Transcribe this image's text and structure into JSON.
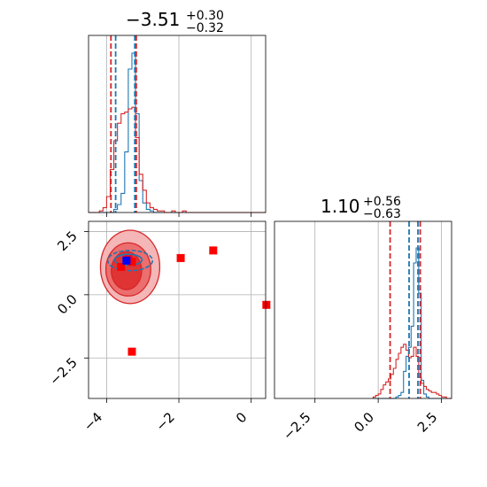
{
  "chart_data": [
    {
      "type": "histogram",
      "panel": "x-marginal",
      "title": {
        "value": "−3.51",
        "plus": "+0.30",
        "minus": "−0.32"
      },
      "xlim": [
        -4.5,
        0.4
      ],
      "xticks": [
        -4,
        -2,
        0
      ],
      "grid": true,
      "colors": {
        "blue": "#1f77b4",
        "red": "#d62728"
      },
      "bins": [
        -4.5,
        -4.4,
        -4.3,
        -4.2,
        -4.1,
        -4.0,
        -3.9,
        -3.8,
        -3.7,
        -3.6,
        -3.5,
        -3.4,
        -3.3,
        -3.2,
        -3.1,
        -3.0,
        -2.9,
        -2.8,
        -2.7,
        -2.6,
        -2.5,
        -2.4,
        -2.3,
        -2.2,
        -2.1,
        -2.0,
        -1.9,
        -1.8,
        -1.7,
        -1.6,
        -1.5,
        -1.4,
        -1.3,
        -1.2,
        -1.1,
        -1.0,
        -0.9,
        -0.8,
        -0.7,
        -0.6,
        -0.5,
        -0.4,
        -0.3,
        -0.2,
        -0.1,
        0.0,
        0.1,
        0.2,
        0.3,
        0.4
      ],
      "series": [
        {
          "color": "blue",
          "counts": [
            0,
            0,
            0,
            0,
            0,
            0,
            0,
            2,
            5,
            12,
            38,
            90,
            100,
            62,
            20,
            6,
            2,
            1,
            0,
            0,
            0,
            0,
            0,
            0,
            0,
            0,
            0,
            0,
            0,
            0,
            0,
            0,
            0,
            0,
            0,
            0,
            0,
            0,
            0,
            0,
            0,
            0,
            0,
            0,
            0,
            0,
            0,
            0,
            0
          ]
        },
        {
          "color": "red",
          "counts": [
            0,
            0,
            0,
            1,
            3,
            10,
            27,
            45,
            56,
            62,
            63,
            65,
            66,
            47,
            24,
            14,
            6,
            3,
            2,
            1,
            1,
            0,
            0,
            1,
            0,
            0,
            1,
            0,
            0,
            0,
            0,
            0,
            0,
            0,
            0,
            0,
            0,
            0,
            0,
            0,
            0,
            0,
            0,
            0,
            0,
            0,
            0,
            0,
            0
          ]
        }
      ],
      "quantile_lines": [
        {
          "color": "red",
          "x": -3.88
        },
        {
          "color": "red",
          "x": -3.18
        },
        {
          "color": "blue",
          "x": -3.75
        },
        {
          "color": "blue",
          "x": -3.22
        }
      ]
    },
    {
      "type": "scatter",
      "panel": "joint",
      "xlim": [
        -4.5,
        0.4
      ],
      "ylim": [
        -4.1,
        2.9
      ],
      "xticks": [
        -4,
        -2,
        0
      ],
      "yticks": [
        2.5,
        0.0,
        -2.5
      ],
      "xticklabels": [
        "−4",
        "−2",
        "0"
      ],
      "yticklabels": [
        "2.5",
        "0.0",
        "−2.5"
      ],
      "grid": true,
      "contours": {
        "red": [
          {
            "cx": -3.35,
            "cy": 1.1,
            "rx": 0.82,
            "ry": 1.45,
            "level": "outer"
          },
          {
            "cx": -3.4,
            "cy": 1.0,
            "rx": 0.62,
            "ry": 1.05,
            "level": "mid"
          },
          {
            "cx": -3.45,
            "cy": 0.95,
            "rx": 0.42,
            "ry": 0.75,
            "level": "inner"
          }
        ],
        "blue": [
          {
            "cx": -3.35,
            "cy": 1.35,
            "rx": 0.62,
            "ry": 0.4,
            "level": "outer"
          },
          {
            "cx": -3.4,
            "cy": 1.38,
            "rx": 0.38,
            "ry": 0.22,
            "level": "inner"
          }
        ]
      },
      "markers": [
        {
          "color": "red",
          "x": -3.4,
          "y": 1.4
        },
        {
          "color": "red",
          "x": -3.6,
          "y": 1.1
        },
        {
          "color": "red",
          "x": -3.3,
          "y": 1.3
        },
        {
          "color": "red",
          "x": -1.95,
          "y": 1.45
        },
        {
          "color": "red",
          "x": -1.05,
          "y": 1.75
        },
        {
          "color": "red",
          "x": 0.42,
          "y": -0.4
        },
        {
          "color": "red",
          "x": -3.3,
          "y": -2.25
        },
        {
          "color": "blue",
          "x": -3.45,
          "y": 1.35
        }
      ]
    },
    {
      "type": "histogram",
      "panel": "y-marginal",
      "title": {
        "value": "1.10",
        "plus": "+0.56",
        "minus": "−0.63"
      },
      "xlim": [
        -4.1,
        2.9
      ],
      "xticks": [
        -2.5,
        0.0,
        2.5
      ],
      "xticklabels": [
        "−2.5",
        "0.0",
        "2.5"
      ],
      "grid": true,
      "bins": [
        -0.2,
        -0.1,
        0.0,
        0.1,
        0.2,
        0.3,
        0.4,
        0.5,
        0.6,
        0.7,
        0.8,
        0.9,
        1.0,
        1.1,
        1.2,
        1.3,
        1.4,
        1.5,
        1.6,
        1.7,
        1.8,
        1.9,
        2.0,
        2.1,
        2.2,
        2.3,
        2.4,
        2.5,
        2.6,
        2.7,
        2.8,
        2.9
      ],
      "series": [
        {
          "color": "blue",
          "counts": [
            0,
            0,
            0,
            0,
            0,
            0,
            0,
            0,
            0,
            1,
            2,
            4,
            18,
            28,
            34,
            48,
            90,
            100,
            70,
            12,
            3,
            1,
            0,
            0,
            0,
            0,
            0,
            0,
            0,
            0,
            0
          ]
        },
        {
          "color": "red",
          "counts": [
            1,
            2,
            3,
            6,
            9,
            11,
            13,
            16,
            20,
            26,
            30,
            34,
            36,
            32,
            27,
            28,
            34,
            28,
            14,
            10,
            8,
            6,
            5,
            4,
            4,
            3,
            2,
            1,
            1,
            0,
            0
          ]
        }
      ],
      "quantile_lines": [
        {
          "color": "red",
          "x": 0.47
        },
        {
          "color": "red",
          "x": 1.66
        },
        {
          "color": "blue",
          "x": 1.22
        },
        {
          "color": "blue",
          "x": 1.57
        }
      ]
    }
  ]
}
